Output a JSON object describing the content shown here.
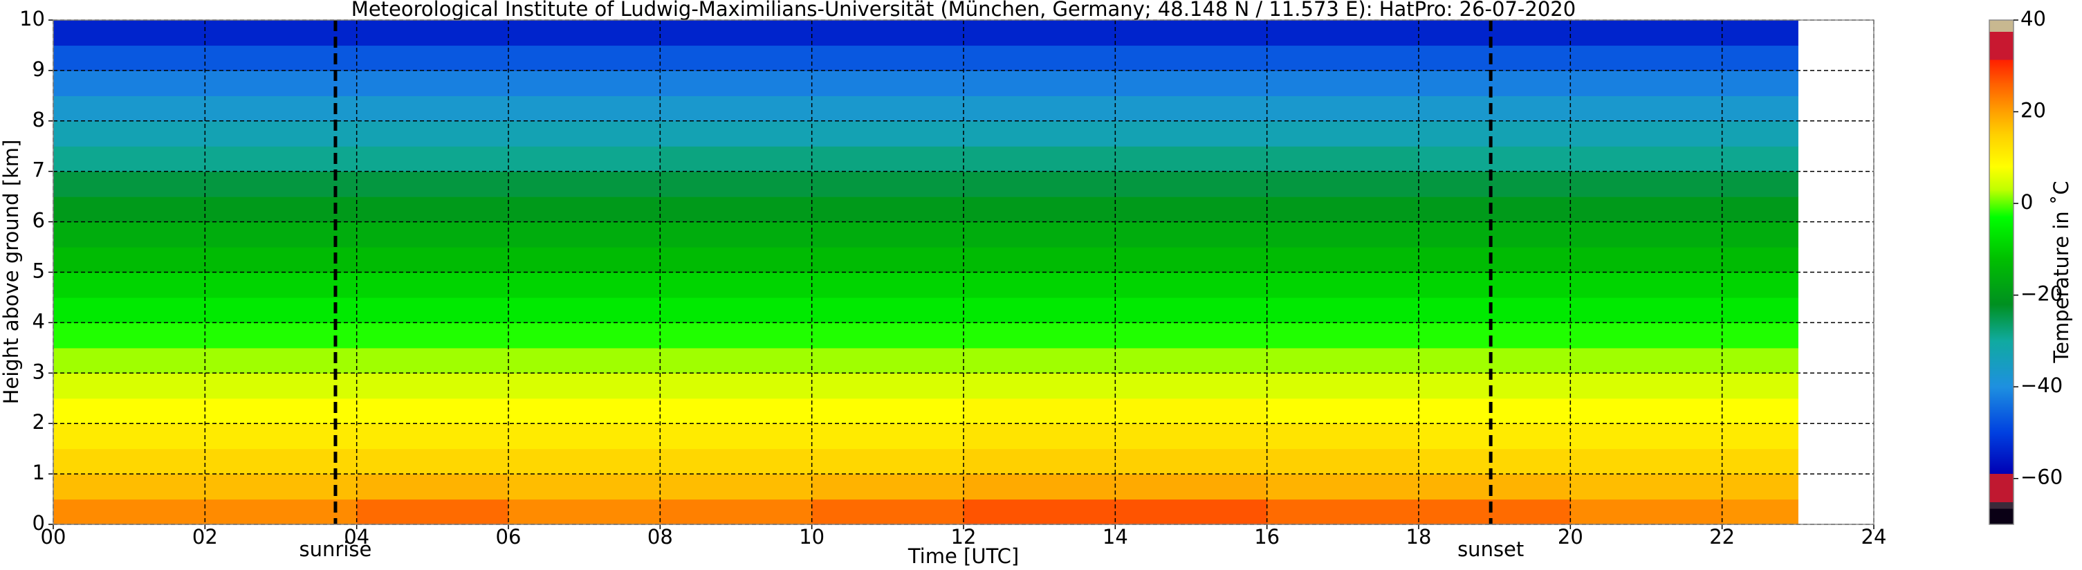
{
  "chart_data": {
    "type": "heatmap",
    "title": "Meteorological Institute of Ludwig-Maximilians-Universität (München, Germany; 48.148 N / 11.573 E):    HatPro: 26-07-2020",
    "xlabel": "Time [UTC]",
    "ylabel": "Height above ground [km]",
    "colorbar_label": "Temperature in ˚C",
    "xlim": [
      0,
      24
    ],
    "ylim": [
      0,
      10
    ],
    "xticks": [
      {
        "value": 0,
        "label": "00"
      },
      {
        "value": 2,
        "label": "02"
      },
      {
        "value": 4,
        "label": "04"
      },
      {
        "value": 6,
        "label": "06"
      },
      {
        "value": 8,
        "label": "08"
      },
      {
        "value": 10,
        "label": "10"
      },
      {
        "value": 12,
        "label": "12"
      },
      {
        "value": 14,
        "label": "14"
      },
      {
        "value": 16,
        "label": "16"
      },
      {
        "value": 18,
        "label": "18"
      },
      {
        "value": 20,
        "label": "20"
      },
      {
        "value": 22,
        "label": "22"
      },
      {
        "value": 24,
        "label": "24"
      }
    ],
    "yticks": [
      0,
      1,
      2,
      3,
      4,
      5,
      6,
      7,
      8,
      9,
      10
    ],
    "grid": true,
    "clim": [
      -70,
      40
    ],
    "cticks": [
      {
        "value": -60,
        "label": "−60"
      },
      {
        "value": -40,
        "label": "−40"
      },
      {
        "value": -20,
        "label": "−20"
      },
      0,
      20,
      40
    ],
    "colorscale": [
      {
        "value": -70,
        "color": "#0a0015"
      },
      {
        "value": -66.6,
        "color": "#0a0015"
      },
      {
        "value": -66.6,
        "color": "#3a2a3a"
      },
      {
        "value": -65.2,
        "color": "#3a2a3a"
      },
      {
        "value": -65.2,
        "color": "#c01830"
      },
      {
        "value": -59,
        "color": "#c01830"
      },
      {
        "value": -59,
        "color": "#0000b4"
      },
      {
        "value": -50,
        "color": "#0040e0"
      },
      {
        "value": -40,
        "color": "#1e90e0"
      },
      {
        "value": -30,
        "color": "#10aaa0"
      },
      {
        "value": -22,
        "color": "#009020"
      },
      {
        "value": -12,
        "color": "#00c000"
      },
      {
        "value": -3,
        "color": "#00ff00"
      },
      {
        "value": 3,
        "color": "#c0ff00"
      },
      {
        "value": 8,
        "color": "#ffff00"
      },
      {
        "value": 15,
        "color": "#ffd000"
      },
      {
        "value": 20,
        "color": "#ffa000"
      },
      {
        "value": 26,
        "color": "#ff6000"
      },
      {
        "value": 31.3,
        "color": "#ff2000"
      },
      {
        "value": 31.3,
        "color": "#c81830"
      },
      {
        "value": 37.4,
        "color": "#c81830"
      },
      {
        "value": 37.4,
        "color": "#c8b890"
      },
      {
        "value": 40,
        "color": "#c8b890"
      }
    ],
    "xbins": [
      0,
      2,
      4,
      6,
      8,
      10,
      12,
      14,
      16,
      18,
      20,
      22,
      23
    ],
    "ybins": [
      0,
      0.5,
      1,
      1.5,
      2,
      2.5,
      3,
      3.5,
      4,
      4.5,
      5,
      5.5,
      6,
      6.5,
      7,
      7.5,
      8,
      8.5,
      9,
      9.5,
      10
    ],
    "z": [
      [
        22,
        22,
        25,
        22,
        23,
        25,
        27,
        27,
        25,
        25,
        22,
        21
      ],
      [
        17,
        17,
        18,
        17,
        17,
        18,
        19,
        19,
        18,
        18,
        17,
        17
      ],
      [
        14,
        14,
        14,
        14,
        14,
        14,
        15,
        15,
        15,
        14,
        14,
        14
      ],
      [
        11,
        11,
        11,
        11,
        11,
        11,
        12,
        12,
        12,
        11,
        11,
        11
      ],
      [
        8,
        8,
        8,
        8,
        8,
        8,
        9,
        9,
        8,
        8,
        8,
        8
      ],
      [
        5,
        5,
        5,
        5,
        5,
        5,
        5,
        5,
        5,
        5,
        5,
        5
      ],
      [
        2,
        2,
        2,
        2,
        2,
        2,
        2,
        2,
        2,
        2,
        2,
        2
      ],
      [
        -2,
        -2,
        -2,
        -2,
        -2,
        -2,
        -2,
        -2,
        -2,
        -2,
        -2,
        -2
      ],
      [
        -6,
        -6,
        -6,
        -6,
        -6,
        -6,
        -6,
        -6,
        -6,
        -6,
        -6,
        -6
      ],
      [
        -9,
        -9,
        -9,
        -9,
        -9,
        -9,
        -9,
        -9,
        -9,
        -9,
        -9,
        -9
      ],
      [
        -13,
        -13,
        -13,
        -13,
        -13,
        -13,
        -13,
        -13,
        -13,
        -13,
        -13,
        -13
      ],
      [
        -16,
        -16,
        -16,
        -16,
        -16,
        -16,
        -16,
        -16,
        -16,
        -16,
        -16,
        -16
      ],
      [
        -20,
        -20,
        -20,
        -20,
        -20,
        -20,
        -20,
        -20,
        -20,
        -20,
        -20,
        -20
      ],
      [
        -24,
        -24,
        -24,
        -24,
        -24,
        -24,
        -24,
        -24,
        -24,
        -24,
        -24,
        -24
      ],
      [
        -29,
        -29,
        -29,
        -29,
        -28,
        -28,
        -28,
        -28,
        -28,
        -29,
        -29,
        -29
      ],
      [
        -33,
        -33,
        -33,
        -33,
        -33,
        -33,
        -33,
        -33,
        -33,
        -33,
        -33,
        -33
      ],
      [
        -37,
        -37,
        -37,
        -37,
        -37,
        -37,
        -37,
        -37,
        -37,
        -37,
        -37,
        -37
      ],
      [
        -42,
        -42,
        -42,
        -42,
        -42,
        -42,
        -42,
        -42,
        -42,
        -42,
        -42,
        -42
      ],
      [
        -47,
        -47,
        -47,
        -47,
        -47,
        -47,
        -47,
        -47,
        -47,
        -47,
        -47,
        -47
      ],
      [
        -54,
        -54,
        -54,
        -54,
        -54,
        -54,
        -54,
        -54,
        -54,
        -54,
        -54,
        -54
      ]
    ],
    "annotations": [
      {
        "x": 3.72,
        "label": "sunrise"
      },
      {
        "x": 18.95,
        "label": "sunset"
      }
    ]
  }
}
